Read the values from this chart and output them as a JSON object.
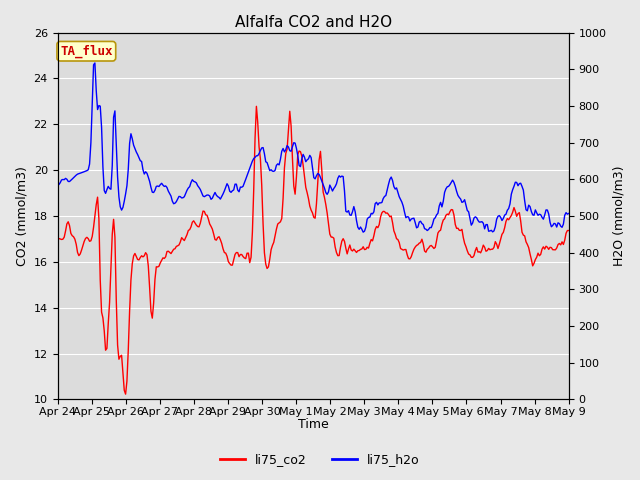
{
  "title": "Alfalfa CO2 and H2O",
  "xlabel": "Time",
  "ylabel_left": "CO2 (mmol/m3)",
  "ylabel_right": "H2O (mmol/m3)",
  "ylim_left": [
    10,
    26
  ],
  "ylim_right": [
    0,
    1000
  ],
  "yticks_left": [
    10,
    12,
    14,
    16,
    18,
    20,
    22,
    24,
    26
  ],
  "yticks_right": [
    0,
    100,
    200,
    300,
    400,
    500,
    600,
    700,
    800,
    900,
    1000
  ],
  "legend_labels": [
    "li75_co2",
    "li75_h2o"
  ],
  "co2_color": "red",
  "h2o_color": "blue",
  "annotation_text": "TA_flux",
  "fig_bg_color": "#e8e8e8",
  "plot_bg_color": "#dcdcdc",
  "title_fontsize": 11,
  "label_fontsize": 9,
  "tick_fontsize": 8,
  "legend_fontsize": 9,
  "linewidth": 1.0,
  "x_tick_labels": [
    "Apr 24",
    "Apr 25",
    "Apr 26",
    "Apr 27",
    "Apr 28",
    "Apr 29",
    "Apr 30",
    "May 1",
    "May 2",
    "May 3",
    "May 4",
    "May 5",
    "May 6",
    "May 7",
    "May 8",
    "May 9"
  ],
  "x_tick_positions": [
    0,
    24,
    48,
    72,
    96,
    120,
    144,
    168,
    192,
    216,
    240,
    264,
    288,
    312,
    336,
    360
  ]
}
